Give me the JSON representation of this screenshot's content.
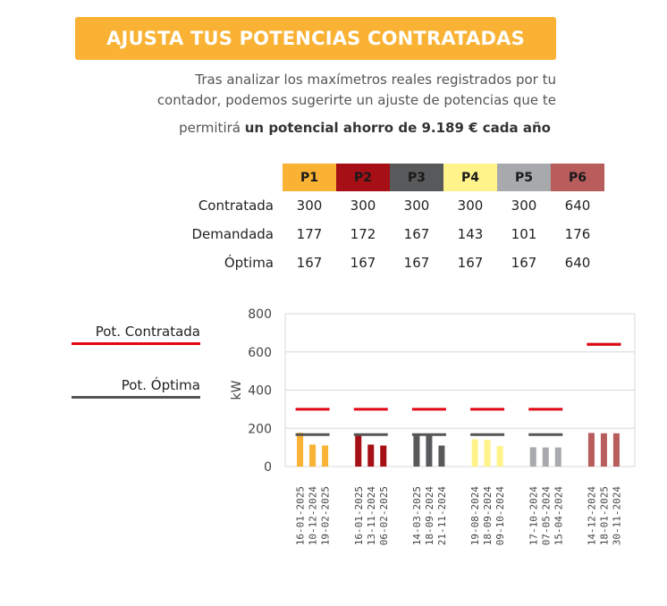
{
  "header": {
    "title": "AJUSTA TUS POTENCIAS CONTRATADAS",
    "intro_line1": "Tras analizar los maxímetros reales registrados por tu",
    "intro_line2": "contador, podemos sugerirte un ajuste de potencias que te",
    "saving_prefix": "permitirá ",
    "saving_bold": "un potencial ahorro de 9.189 € cada año"
  },
  "table": {
    "periods": [
      {
        "label": "P1",
        "color": "#f9b233"
      },
      {
        "label": "P2",
        "color": "#a50f15"
      },
      {
        "label": "P3",
        "color": "#58595b"
      },
      {
        "label": "P4",
        "color": "#fff38a"
      },
      {
        "label": "P5",
        "color": "#a7a9ac"
      },
      {
        "label": "P6",
        "color": "#b85c5c"
      }
    ],
    "rows": [
      {
        "label": "Contratada",
        "values": [
          "300",
          "300",
          "300",
          "300",
          "300",
          "640"
        ]
      },
      {
        "label": "Demandada",
        "values": [
          "177",
          "172",
          "167",
          "143",
          "101",
          "176"
        ]
      },
      {
        "label": "Óptima",
        "values": [
          "167",
          "167",
          "167",
          "167",
          "167",
          "640"
        ]
      }
    ]
  },
  "legend": {
    "contratada": {
      "label": "Pot. Contratada",
      "color": "#e30613"
    },
    "optima": {
      "label": "Pot. Óptima",
      "color": "#555555"
    }
  },
  "chart_data": {
    "type": "bar",
    "ylabel": "kW",
    "ylim": [
      0,
      800
    ],
    "yticks": [
      0,
      200,
      400,
      600,
      800
    ],
    "grid": true,
    "groups": [
      {
        "period": "P1",
        "color": "#f9b233",
        "dates": [
          "16-01-2025",
          "10-12-2024",
          "19-02-2025"
        ],
        "values": [
          177,
          115,
          110
        ],
        "contratada": 300,
        "optima": 167
      },
      {
        "period": "P2",
        "color": "#a50f15",
        "dates": [
          "16-01-2025",
          "13-11-2024",
          "06-02-2025"
        ],
        "values": [
          172,
          115,
          110
        ],
        "contratada": 300,
        "optima": 167
      },
      {
        "period": "P3",
        "color": "#58595b",
        "dates": [
          "14-03-2025",
          "18-09-2024",
          "21-11-2024"
        ],
        "values": [
          167,
          167,
          110
        ],
        "contratada": 300,
        "optima": 167
      },
      {
        "period": "P4",
        "color": "#fff38a",
        "dates": [
          "19-08-2024",
          "18-09-2024",
          "09-10-2024"
        ],
        "values": [
          143,
          140,
          108
        ],
        "contratada": 300,
        "optima": 167
      },
      {
        "period": "P5",
        "color": "#a7a9ac",
        "dates": [
          "17-10-2024",
          "07-05-2024",
          "15-04-2024"
        ],
        "values": [
          101,
          100,
          100
        ],
        "contratada": 300,
        "optima": 167
      },
      {
        "period": "P6",
        "color": "#b85c5c",
        "dates": [
          "14-12-2024",
          "18-01-2025",
          "30-11-2024"
        ],
        "values": [
          176,
          174,
          174
        ],
        "contratada": 640,
        "optima": 640
      }
    ]
  }
}
